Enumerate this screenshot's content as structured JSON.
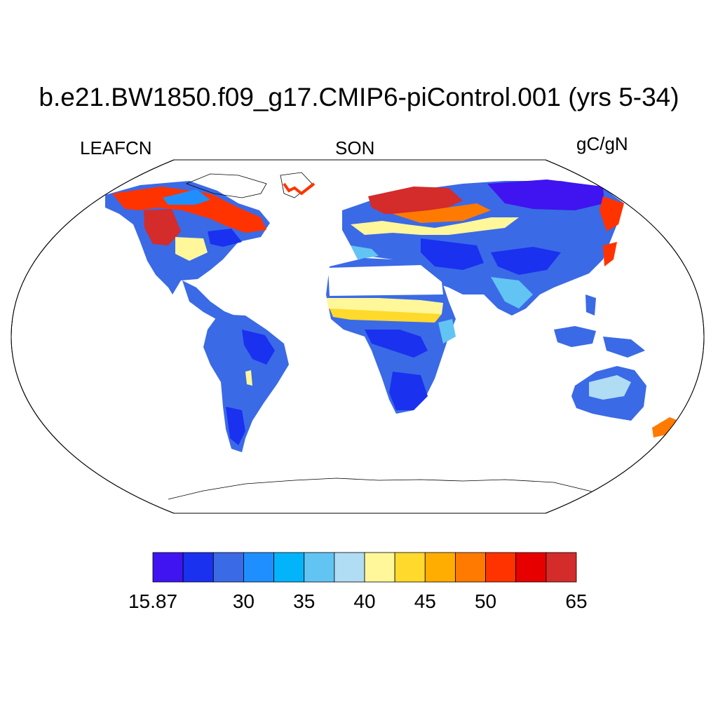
{
  "title": "b.e21.BW1850.f09_g17.CMIP6-piControl.001 (yrs 5-34)",
  "variable": "LEAFCN",
  "season": "SON",
  "units": "gC/gN",
  "colorbar": {
    "colors": [
      "#3f14f0",
      "#1a31f0",
      "#3b6ae6",
      "#1f8fff",
      "#04b4fb",
      "#62c4f3",
      "#b0dcf4",
      "#fff79a",
      "#ffd92b",
      "#ffad00",
      "#ff7a00",
      "#ff3300",
      "#e60000",
      "#d42b2b"
    ],
    "tick_labels": [
      "15.87",
      "30",
      "35",
      "40",
      "45",
      "50",
      "65"
    ]
  }
}
